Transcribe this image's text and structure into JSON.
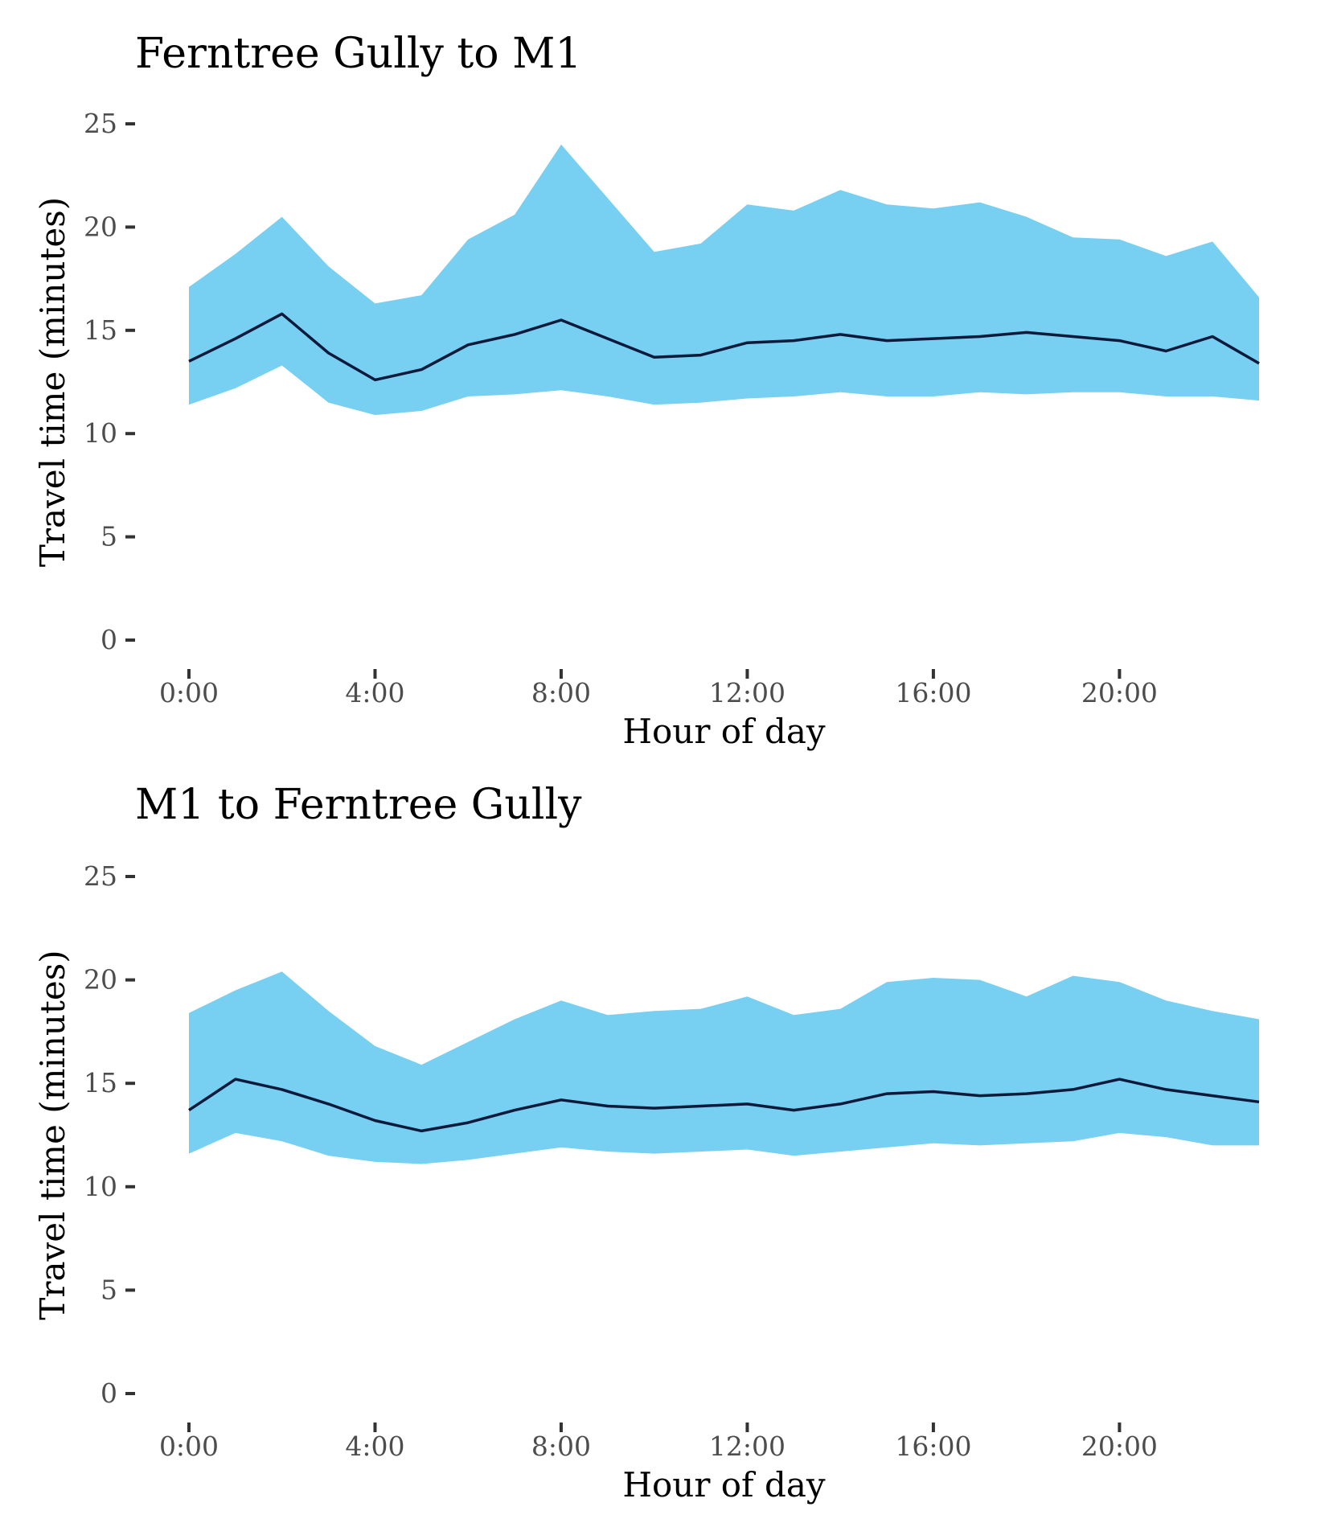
{
  "colors": {
    "band": "#77cff2",
    "line": "#0b1a3a",
    "tick_text": "#4d4d4d"
  },
  "chart_data": [
    {
      "type": "area",
      "title": "Ferntree Gully to M1",
      "xlabel": "Hour of day",
      "ylabel": "Travel time (minutes)",
      "ylim": [
        0,
        25
      ],
      "xlim": [
        0,
        23
      ],
      "yticks": [
        0,
        5,
        10,
        15,
        20,
        25
      ],
      "xticks": [
        0,
        4,
        8,
        12,
        16,
        20
      ],
      "xtick_labels": [
        "0:00",
        "4:00",
        "8:00",
        "12:00",
        "16:00",
        "20:00"
      ],
      "grid": false,
      "x": [
        0,
        1,
        2,
        3,
        4,
        5,
        6,
        7,
        8,
        9,
        10,
        11,
        12,
        13,
        14,
        15,
        16,
        17,
        18,
        19,
        20,
        21,
        22,
        23
      ],
      "band_upper": [
        17.1,
        18.7,
        20.5,
        18.1,
        16.3,
        16.7,
        19.4,
        20.6,
        24.0,
        21.4,
        18.8,
        19.2,
        21.1,
        20.8,
        21.8,
        21.1,
        20.9,
        21.2,
        20.5,
        19.5,
        19.4,
        18.6,
        19.3,
        16.6
      ],
      "band_lower": [
        11.4,
        12.2,
        13.3,
        11.5,
        10.9,
        11.1,
        11.8,
        11.9,
        12.1,
        11.8,
        11.4,
        11.5,
        11.7,
        11.8,
        12.0,
        11.8,
        11.8,
        12.0,
        11.9,
        12.0,
        12.0,
        11.8,
        11.8,
        11.6
      ],
      "mean": [
        13.5,
        14.6,
        15.8,
        13.9,
        12.6,
        13.1,
        14.3,
        14.8,
        15.5,
        14.6,
        13.7,
        13.8,
        14.4,
        14.5,
        14.8,
        14.5,
        14.6,
        14.7,
        14.9,
        14.7,
        14.5,
        14.0,
        14.7,
        13.4
      ]
    },
    {
      "type": "area",
      "title": "M1 to Ferntree Gully",
      "xlabel": "Hour of day",
      "ylabel": "Travel time (minutes)",
      "ylim": [
        0,
        25
      ],
      "xlim": [
        0,
        23
      ],
      "yticks": [
        0,
        5,
        10,
        15,
        20,
        25
      ],
      "xticks": [
        0,
        4,
        8,
        12,
        16,
        20
      ],
      "xtick_labels": [
        "0:00",
        "4:00",
        "8:00",
        "12:00",
        "16:00",
        "20:00"
      ],
      "grid": false,
      "x": [
        0,
        1,
        2,
        3,
        4,
        5,
        6,
        7,
        8,
        9,
        10,
        11,
        12,
        13,
        14,
        15,
        16,
        17,
        18,
        19,
        20,
        21,
        22,
        23
      ],
      "band_upper": [
        18.4,
        19.5,
        20.4,
        18.5,
        16.8,
        15.9,
        17.0,
        18.1,
        19.0,
        18.3,
        18.5,
        18.6,
        19.2,
        18.3,
        18.6,
        19.9,
        20.1,
        20.0,
        19.2,
        20.2,
        19.9,
        19.0,
        18.5,
        18.1
      ],
      "band_lower": [
        11.6,
        12.6,
        12.2,
        11.5,
        11.2,
        11.1,
        11.3,
        11.6,
        11.9,
        11.7,
        11.6,
        11.7,
        11.8,
        11.5,
        11.7,
        11.9,
        12.1,
        12.0,
        12.1,
        12.2,
        12.6,
        12.4,
        12.0,
        12.0
      ],
      "mean": [
        13.7,
        15.2,
        14.7,
        14.0,
        13.2,
        12.7,
        13.1,
        13.7,
        14.2,
        13.9,
        13.8,
        13.9,
        14.0,
        13.7,
        14.0,
        14.5,
        14.6,
        14.4,
        14.5,
        14.7,
        15.2,
        14.7,
        14.4,
        14.1
      ]
    }
  ]
}
